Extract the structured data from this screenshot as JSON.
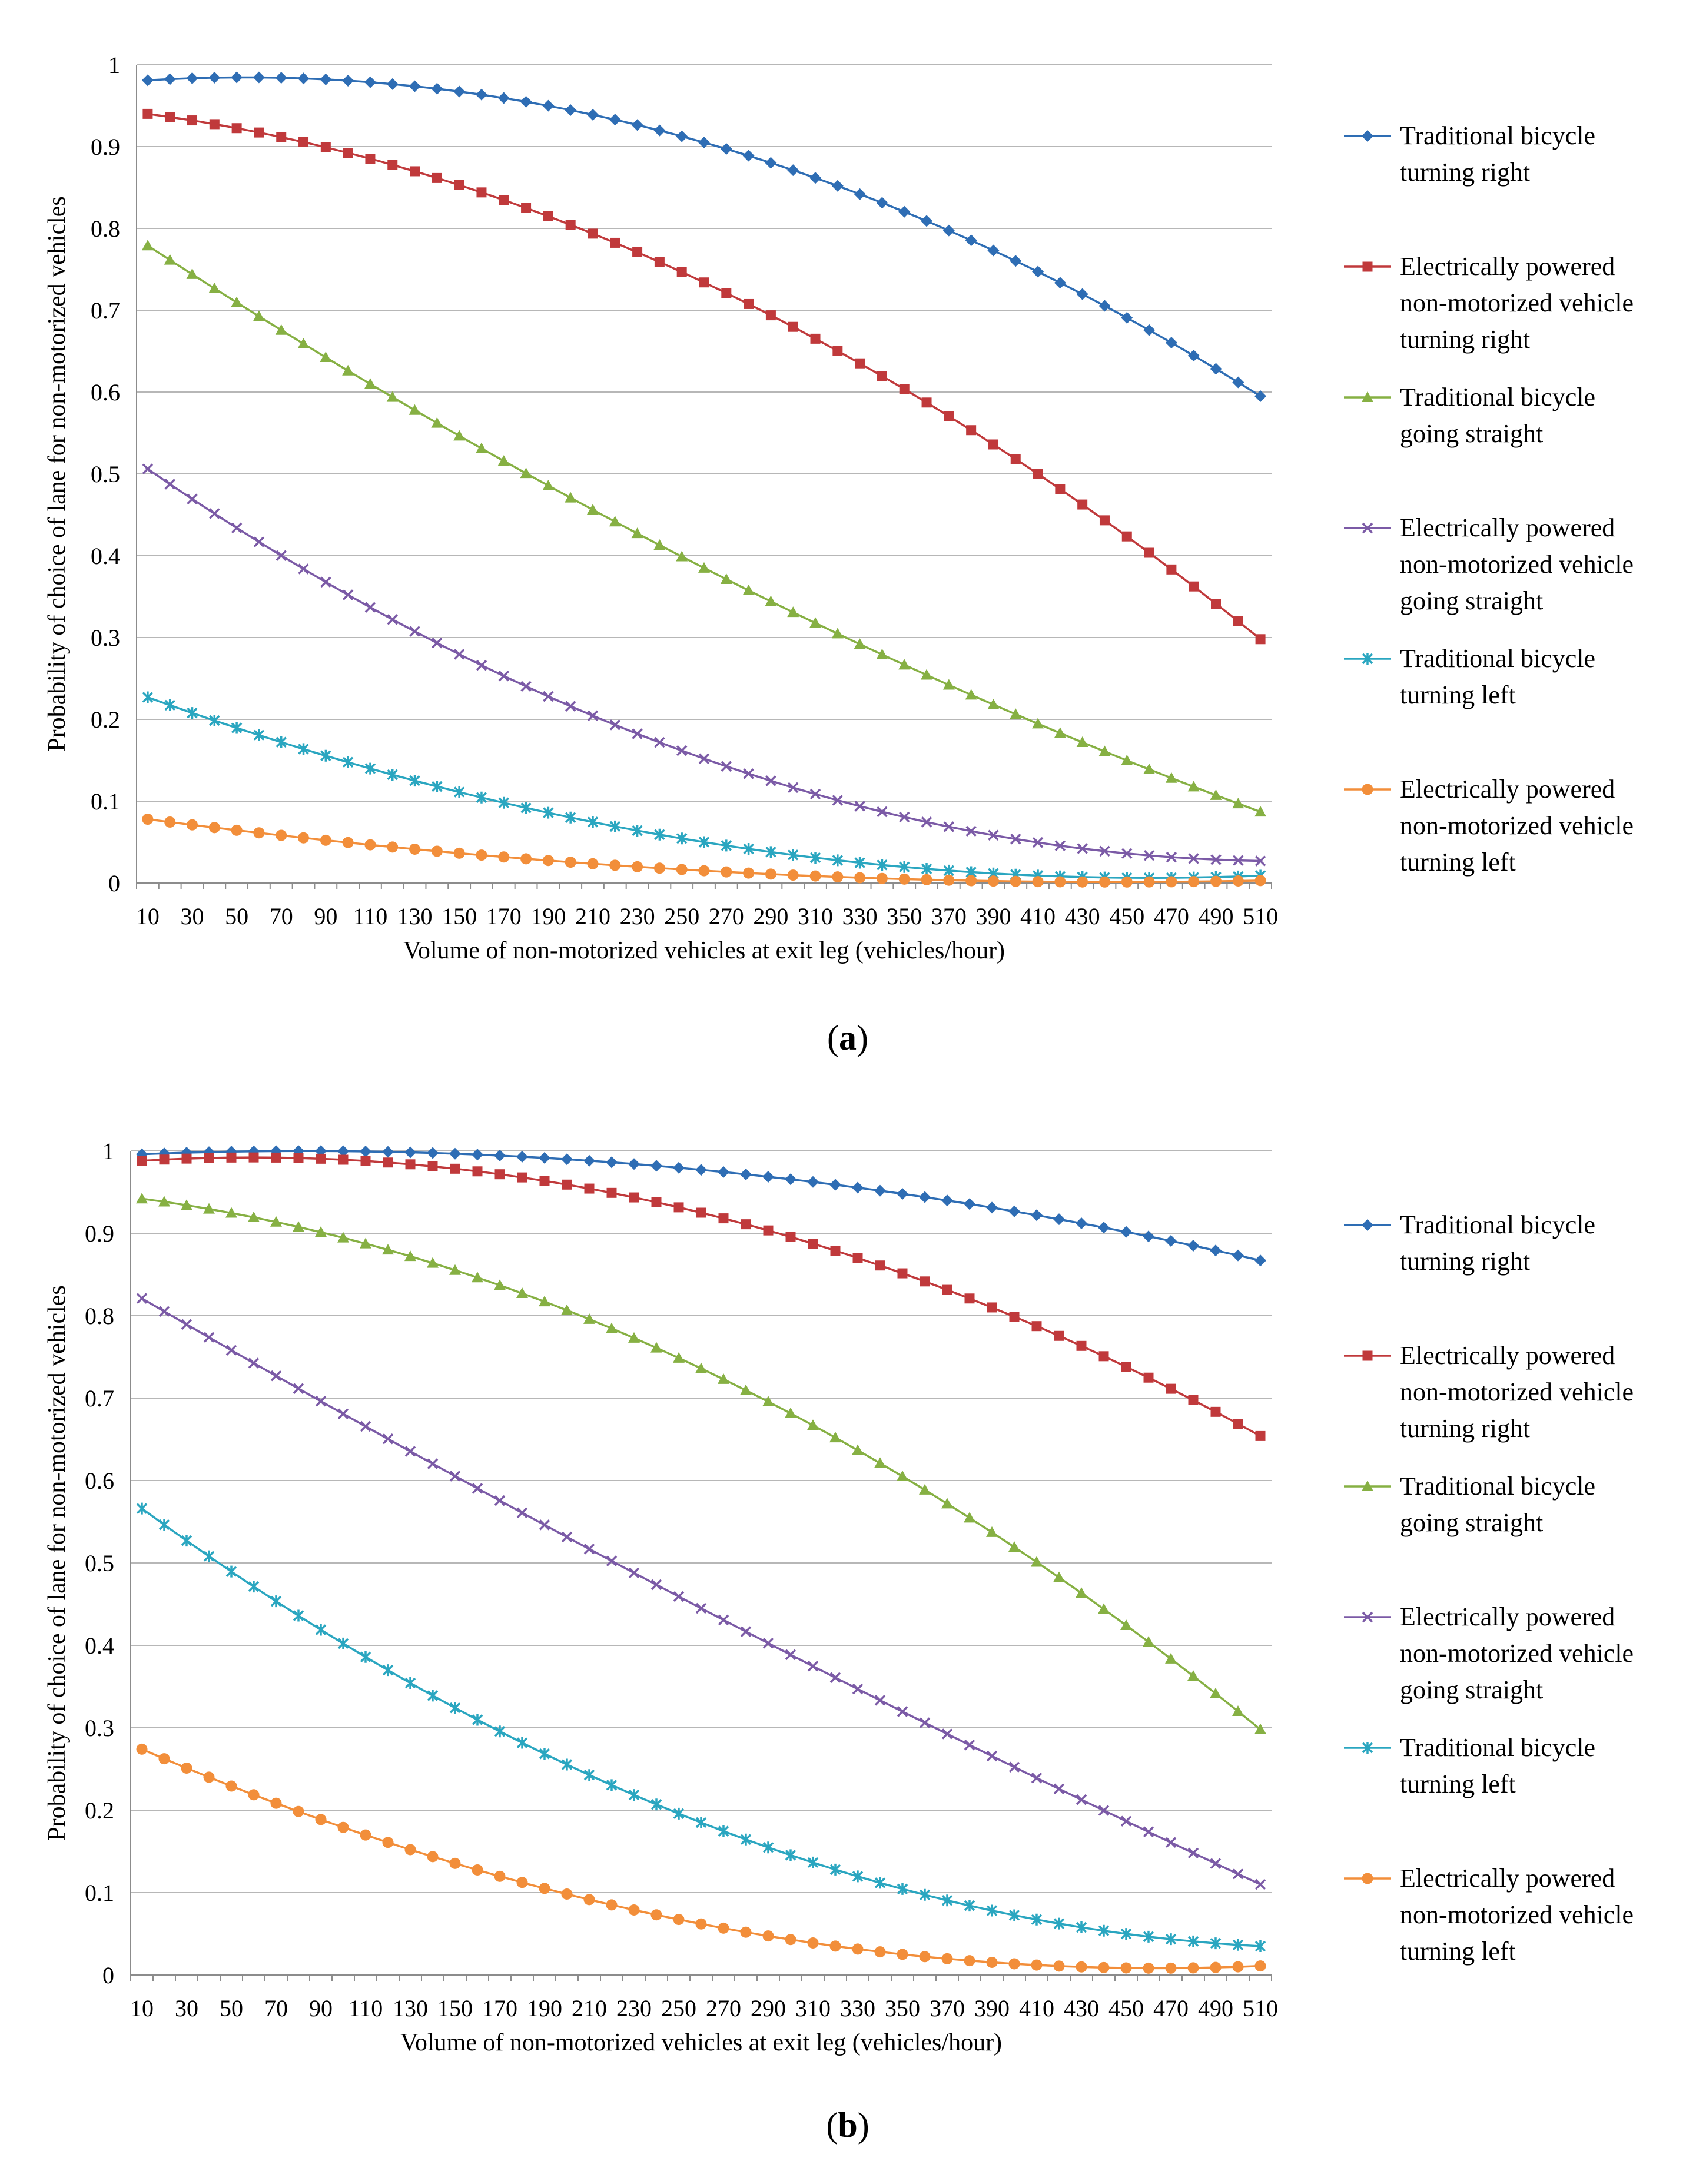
{
  "chart_data": [
    {
      "type": "line",
      "caption_letter": "a",
      "xlabel": "Volume of non-motorized vehicles at exit leg (vehicles/hour)",
      "ylabel": "Probability of choice of lane for non-motorized vehicles",
      "ylim": [
        0,
        1
      ],
      "yticks": [
        "0",
        "0.1",
        "0.2",
        "0.3",
        "0.4",
        "0.5",
        "0.6",
        "0.7",
        "0.8",
        "0.9",
        "1"
      ],
      "xticks": [
        "10",
        "30",
        "50",
        "70",
        "90",
        "110",
        "130",
        "150",
        "170",
        "190",
        "210",
        "230",
        "250",
        "270",
        "290",
        "310",
        "330",
        "350",
        "370",
        "390",
        "410",
        "430",
        "450",
        "470",
        "490",
        "510"
      ],
      "x_start": 10,
      "x_step": 10,
      "n_points": 51,
      "grid": "horizontal",
      "legend_position": "right",
      "series": [
        {
          "name": "Traditional bicycle turning right",
          "legend_lines": [
            "Traditional bicycle",
            "turning right"
          ],
          "color": "#2E6DB4",
          "marker": "diamond",
          "start": 0.981,
          "end": 0.595,
          "mid": 0.905
        },
        {
          "name": "Electrically powered non-motorized vehicle turning right",
          "legend_lines": [
            "Electrically powered",
            "non-motorized vehicle",
            "turning right"
          ],
          "color": "#C0393B",
          "marker": "square",
          "start": 0.94,
          "end": 0.298,
          "mid": 0.734
        },
        {
          "name": "Traditional bicycle going straight",
          "legend_lines": [
            "Traditional bicycle",
            "going straight"
          ],
          "color": "#86B043",
          "marker": "triangle",
          "start": 0.779,
          "end": 0.087,
          "mid": 0.385
        },
        {
          "name": "Electrically powered non-motorized vehicle going straight",
          "legend_lines": [
            "Electrically powered",
            "non-motorized vehicle",
            "going straight"
          ],
          "color": "#7B5AA6",
          "marker": "x",
          "start": 0.506,
          "end": 0.027,
          "mid": 0.152
        },
        {
          "name": "Traditional bicycle turning left",
          "legend_lines": [
            "Traditional bicycle",
            "turning left"
          ],
          "color": "#2AA6C0",
          "marker": "star",
          "start": 0.227,
          "end": 0.009,
          "mid": 0.05
        },
        {
          "name": "Electrically powered non-motorized vehicle turning left",
          "legend_lines": [
            "Electrically powered",
            "non-motorized vehicle",
            "turning left"
          ],
          "color": "#F28E3A",
          "marker": "circle",
          "start": 0.078,
          "end": 0.003,
          "mid": 0.015
        }
      ]
    },
    {
      "type": "line",
      "caption_letter": "b",
      "xlabel": "Volume of non-motorized vehicles at exit leg (vehicles/hour)",
      "ylabel": "Probability of choice of lane for non-motorized vehicles",
      "ylim": [
        0,
        1
      ],
      "yticks": [
        "0",
        "0.1",
        "0.2",
        "0.3",
        "0.4",
        "0.5",
        "0.6",
        "0.7",
        "0.8",
        "0.9",
        "1"
      ],
      "xticks": [
        "10",
        "30",
        "50",
        "70",
        "90",
        "110",
        "130",
        "150",
        "170",
        "190",
        "210",
        "230",
        "250",
        "270",
        "290",
        "310",
        "330",
        "350",
        "370",
        "390",
        "410",
        "430",
        "450",
        "470",
        "490",
        "510"
      ],
      "x_start": 10,
      "x_step": 10,
      "n_points": 51,
      "grid": "horizontal",
      "legend_position": "right",
      "series": [
        {
          "name": "Traditional bicycle turning right",
          "legend_lines": [
            "Traditional bicycle",
            "turning right"
          ],
          "color": "#2E6DB4",
          "marker": "diamond",
          "start": 0.996,
          "end": 0.867,
          "mid": 0.977
        },
        {
          "name": "Electrically powered non-motorized vehicle turning right",
          "legend_lines": [
            "Electrically powered",
            "non-motorized vehicle",
            "turning right"
          ],
          "color": "#C0393B",
          "marker": "square",
          "start": 0.988,
          "end": 0.654,
          "mid": 0.925
        },
        {
          "name": "Traditional bicycle going straight",
          "legend_lines": [
            "Traditional bicycle",
            "going straight"
          ],
          "color": "#86B043",
          "marker": "triangle",
          "start": 0.942,
          "end": 0.298,
          "mid": 0.736
        },
        {
          "name": "Electrically powered non-motorized vehicle going straight",
          "legend_lines": [
            "Electrically powered",
            "non-motorized vehicle",
            "going straight"
          ],
          "color": "#7B5AA6",
          "marker": "x",
          "start": 0.821,
          "end": 0.11,
          "mid": 0.445
        },
        {
          "name": "Traditional bicycle turning left",
          "legend_lines": [
            "Traditional bicycle",
            "turning left"
          ],
          "color": "#2AA6C0",
          "marker": "star",
          "start": 0.566,
          "end": 0.035,
          "mid": 0.185
        },
        {
          "name": "Electrically powered non-motorized vehicle turning left",
          "legend_lines": [
            "Electrically powered",
            "non-motorized vehicle",
            "turning left"
          ],
          "color": "#F28E3A",
          "marker": "circle",
          "start": 0.274,
          "end": 0.011,
          "mid": 0.062
        }
      ]
    }
  ]
}
